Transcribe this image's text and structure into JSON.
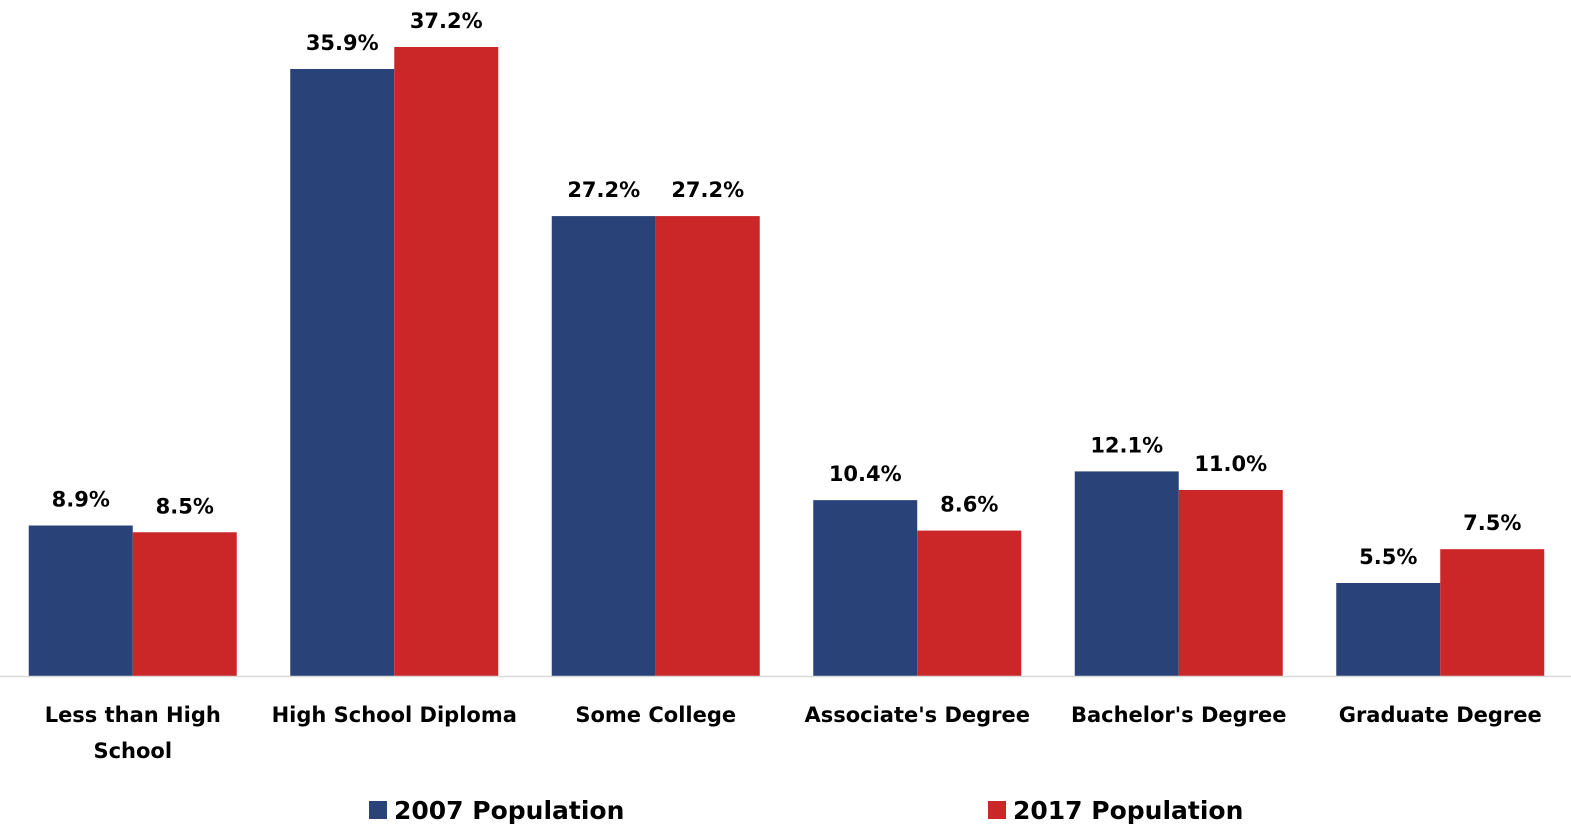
{
  "chart_data": {
    "type": "bar",
    "title": "",
    "xlabel": "",
    "ylabel": "",
    "ylim": [
      0,
      38
    ],
    "grid": false,
    "legend_position": "bottom",
    "value_format_suffix": "%",
    "categories": [
      "Less than High School",
      "High School Diploma",
      "Some College",
      "Associate's Degree",
      "Bachelor's Degree",
      "Graduate Degree"
    ],
    "category_label_lines": [
      [
        "Less than High",
        "School"
      ],
      [
        "High School Diploma"
      ],
      [
        "Some College"
      ],
      [
        "Associate's Degree"
      ],
      [
        "Bachelor's Degree"
      ],
      [
        "Graduate Degree"
      ]
    ],
    "series": [
      {
        "name": "2007 Population",
        "color": "#294378",
        "values": [
          8.9,
          35.9,
          27.2,
          10.4,
          12.1,
          5.5
        ],
        "labels": [
          "8.9%",
          "35.9%",
          "27.2%",
          "10.4%",
          "12.1%",
          "5.5%"
        ]
      },
      {
        "name": "2017 Population",
        "color": "#CB2628",
        "values": [
          8.5,
          37.2,
          27.2,
          8.6,
          11.0,
          7.5
        ],
        "labels": [
          "8.5%",
          "37.2%",
          "27.2%",
          "8.6%",
          "11.0%",
          "7.5%"
        ]
      }
    ]
  }
}
